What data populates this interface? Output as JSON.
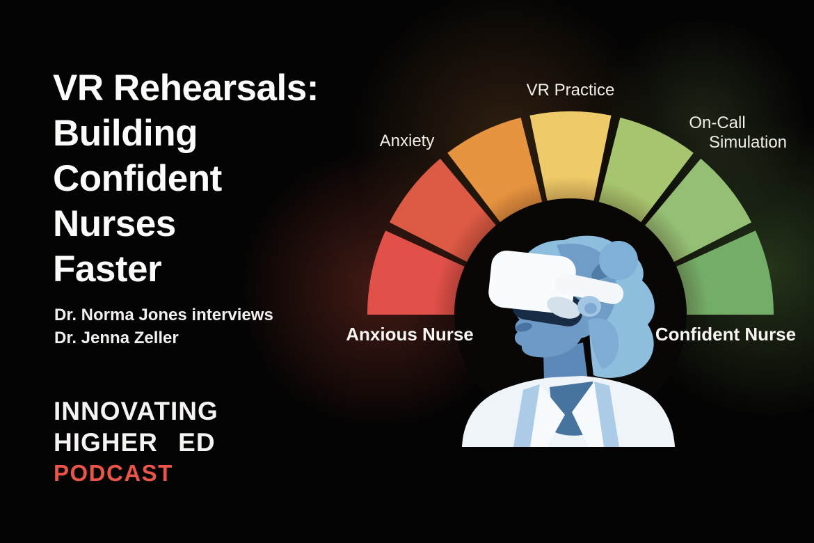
{
  "cover": {
    "title_lines": [
      "VR Rehearsals:",
      "Building",
      "Confident",
      "Nurses",
      "Faster"
    ],
    "subtitle_lines": [
      "Dr. Norma Jones interviews",
      "Dr. Jenna Zeller"
    ],
    "brand": {
      "line1": "INNOVATING",
      "line2": "HIGHER ED",
      "line3": "PODCAST",
      "accent_color": "#ea5449"
    }
  },
  "gauge": {
    "type": "semicircular-gauge",
    "labels": {
      "anxiety": "Anxiety",
      "vr_practice": "VR Practice",
      "oncall_line1": "On-Call",
      "oncall_line2": "Simulation",
      "anxious_nurse": "Anxious Nurse",
      "confident_nurse": "Confident Nurse"
    },
    "segments": [
      {
        "name": "red-low",
        "color": "#e25149"
      },
      {
        "name": "red-high",
        "color": "#dd5a45"
      },
      {
        "name": "orange",
        "color": "#e79440"
      },
      {
        "name": "yellow",
        "color": "#eeca68"
      },
      {
        "name": "yellow-green",
        "color": "#a7c56e"
      },
      {
        "name": "green-light",
        "color": "#94bf74"
      },
      {
        "name": "green",
        "color": "#74ad68"
      }
    ],
    "divider_color": "#0c0a07"
  },
  "illustration": {
    "name": "nurse-wearing-vr-headset",
    "skin_color": "#6d9ac7",
    "hair_color": "#8dbede",
    "headset_color": "#f9fcfe",
    "strap_color": "#f4f8fa",
    "coat_color": "#eff4f8"
  },
  "background_color": "#050404"
}
